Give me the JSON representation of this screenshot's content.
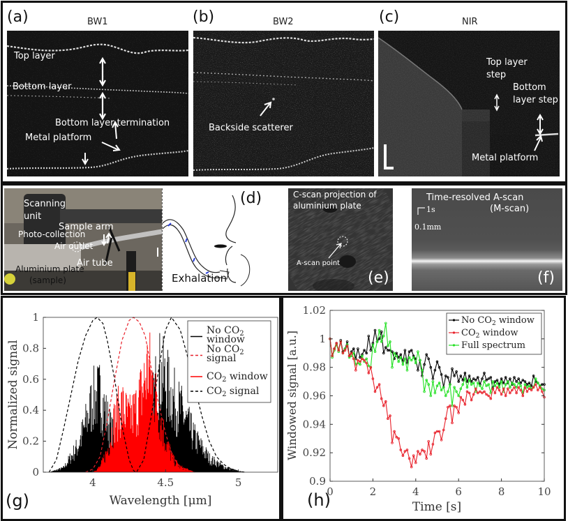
{
  "top_row": {
    "panel_a": {
      "label": "(a)",
      "title": "BW1",
      "annotations": [
        "Top layer",
        "Bottom layer",
        "Bottom layer termination",
        "Metal platform"
      ]
    },
    "panel_b": {
      "label": "(b)",
      "title": "BW2",
      "annotations": [
        "Backside scatterer"
      ]
    },
    "panel_c": {
      "label": "(c)",
      "title": "NIR",
      "annotations": [
        "Top layer",
        "step",
        "Bottom",
        "layer step",
        "Metal platform"
      ]
    }
  },
  "middle_row": {
    "panel_d": {
      "label": "(d)",
      "annotations": [
        "Scanning",
        "unit",
        "Sample arm",
        "Photo-collection",
        "Air outlet",
        "Air tube",
        "Aluminium plate",
        "(sample)",
        "Exhalation"
      ]
    },
    "panel_e": {
      "label": "(e)",
      "annotations": [
        "C-scan projection of",
        "aluminium plate",
        "A-scan point"
      ]
    },
    "panel_f": {
      "label": "(f)",
      "annotations": [
        "Time-resolved A-scan",
        "(M-scan)",
        "1s",
        "0.1mm"
      ]
    }
  },
  "chart_data": [
    {
      "id": "g",
      "panel_label": "(g)",
      "type": "line",
      "xlabel": "Wavelength [μm]",
      "ylabel": "Normalized signal",
      "xlim": [
        3.66,
        5.27
      ],
      "ylim": [
        0,
        1
      ],
      "xticks": [
        "4",
        "4.5",
        "5"
      ],
      "yticks": [
        "0",
        "0.2",
        "0.4",
        "0.6",
        "0.8",
        "1"
      ],
      "grid": false,
      "legend_position": "top-right",
      "series": [
        {
          "name_parts": [
            "No CO",
            "2",
            "window"
          ],
          "style": "solid",
          "color": "#000000",
          "noisy": true,
          "points": [
            [
              3.7,
              0
            ],
            [
              3.8,
              0.04
            ],
            [
              3.9,
              0.25
            ],
            [
              3.95,
              0.45
            ],
            [
              4.0,
              0.68
            ],
            [
              4.05,
              0.74
            ],
            [
              4.1,
              0.5
            ],
            [
              4.15,
              0.3
            ],
            [
              4.2,
              0.1
            ],
            [
              4.3,
              0.05
            ],
            [
              4.4,
              0.55
            ],
            [
              4.45,
              0.95
            ],
            [
              4.5,
              0.85
            ],
            [
              4.55,
              0.7
            ],
            [
              4.6,
              0.6
            ],
            [
              4.7,
              0.32
            ],
            [
              4.8,
              0.13
            ],
            [
              4.9,
              0.05
            ],
            [
              5.0,
              0.01
            ],
            [
              5.05,
              0
            ]
          ]
        },
        {
          "name_parts": [
            "No CO",
            "2",
            "signal"
          ],
          "style": "dashed",
          "color": "#e8202a",
          "noisy": false,
          "points": [
            [
              3.95,
              0
            ],
            [
              4.0,
              0.02
            ],
            [
              4.05,
              0.1
            ],
            [
              4.1,
              0.33
            ],
            [
              4.15,
              0.6
            ],
            [
              4.2,
              0.85
            ],
            [
              4.25,
              0.98
            ],
            [
              4.28,
              1.0
            ],
            [
              4.32,
              0.97
            ],
            [
              4.36,
              0.88
            ],
            [
              4.4,
              0.68
            ],
            [
              4.45,
              0.45
            ],
            [
              4.5,
              0.25
            ],
            [
              4.55,
              0.1
            ],
            [
              4.6,
              0.03
            ],
            [
              4.7,
              0
            ]
          ]
        },
        {
          "name_parts": [
            "CO",
            "2",
            " window"
          ],
          "style": "solid",
          "color": "#ff0000",
          "noisy": true,
          "points": [
            [
              4.0,
              0
            ],
            [
              4.05,
              0.05
            ],
            [
              4.1,
              0.2
            ],
            [
              4.15,
              0.5
            ],
            [
              4.2,
              0.62
            ],
            [
              4.25,
              0.5
            ],
            [
              4.3,
              0.6
            ],
            [
              4.35,
              0.82
            ],
            [
              4.38,
              1.0
            ],
            [
              4.4,
              0.9
            ],
            [
              4.45,
              0.6
            ],
            [
              4.5,
              0.3
            ],
            [
              4.55,
              0.12
            ],
            [
              4.6,
              0.05
            ],
            [
              4.7,
              0
            ]
          ]
        },
        {
          "name_parts": [
            "CO",
            "2",
            " signal"
          ],
          "style": "dashed",
          "color": "#000000",
          "noisy": false,
          "points": [
            [
              3.7,
              0
            ],
            [
              3.75,
              0.08
            ],
            [
              3.8,
              0.28
            ],
            [
              3.85,
              0.5
            ],
            [
              3.9,
              0.72
            ],
            [
              3.95,
              0.88
            ],
            [
              4.0,
              0.98
            ],
            [
              4.03,
              1.0
            ],
            [
              4.07,
              0.96
            ],
            [
              4.1,
              0.85
            ],
            [
              4.15,
              0.6
            ],
            [
              4.2,
              0.3
            ],
            [
              4.25,
              0.08
            ],
            [
              4.28,
              0.01
            ],
            [
              4.3,
              0
            ],
            [
              4.35,
              0.08
            ],
            [
              4.4,
              0.35
            ],
            [
              4.45,
              0.65
            ],
            [
              4.5,
              0.92
            ],
            [
              4.54,
              1.0
            ],
            [
              4.6,
              0.92
            ],
            [
              4.65,
              0.75
            ],
            [
              4.7,
              0.55
            ],
            [
              4.75,
              0.36
            ],
            [
              4.8,
              0.2
            ],
            [
              4.85,
              0.1
            ],
            [
              4.9,
              0.05
            ],
            [
              4.95,
              0.02
            ],
            [
              5.0,
              0.005
            ],
            [
              5.05,
              0
            ]
          ]
        }
      ]
    },
    {
      "id": "h",
      "panel_label": "(h)",
      "type": "line",
      "xlabel": "Time [s]",
      "ylabel": "Windowed signal [a.u.]",
      "xlim": [
        0,
        10
      ],
      "ylim": [
        0.9,
        1.02
      ],
      "xticks": [
        "0",
        "2",
        "4",
        "6",
        "8",
        "10"
      ],
      "yticks": [
        "0.9",
        "0.92",
        "0.94",
        "0.96",
        "0.98",
        "1",
        "1.02"
      ],
      "grid": false,
      "legend_position": "top-right",
      "x_step": 0.1,
      "series": [
        {
          "name_parts": [
            "No CO",
            "2",
            " window"
          ],
          "color": "#000000",
          "values": [
            1.0,
            0.988,
            0.993,
            0.997,
            0.992,
            0.999,
            0.991,
            0.993,
            0.998,
            0.988,
            0.991,
            0.993,
            0.986,
            0.993,
            0.987,
            0.989,
            0.992,
            0.99,
            1.002,
            0.992,
            0.997,
            1.006,
            0.998,
            1.0,
            1.005,
            0.99,
            0.994,
            0.992,
            0.992,
            0.991,
            0.986,
            0.99,
            0.987,
            0.989,
            0.984,
            0.992,
            0.983,
            0.991,
            0.992,
            0.988,
            0.986,
            0.978,
            0.985,
            0.974,
            0.982,
            0.989,
            0.986,
            0.98,
            0.972,
            0.978,
            0.984,
            0.98,
            0.975,
            0.966,
            0.974,
            0.973,
            0.968,
            0.979,
            0.974,
            0.977,
            0.97,
            0.974,
            0.971,
            0.976,
            0.97,
            0.974,
            0.97,
            0.972,
            0.971,
            0.973,
            0.968,
            0.972,
            0.976,
            0.971,
            0.972,
            0.973,
            0.965,
            0.97,
            0.971,
            0.968,
            0.972,
            0.969,
            0.973,
            0.969,
            0.972,
            0.968,
            0.973,
            0.97,
            0.972,
            0.969,
            0.971,
            0.97,
            0.968,
            0.969,
            0.967,
            0.974,
            0.97,
            0.969,
            0.967,
            0.968,
            0.968
          ]
        },
        {
          "name_parts": [
            "CO",
            "2",
            " window"
          ],
          "color": "#e8202a",
          "values": [
            1.0,
            0.988,
            0.993,
            0.997,
            0.992,
            0.998,
            0.99,
            0.992,
            0.995,
            0.988,
            0.99,
            0.986,
            0.978,
            0.985,
            0.984,
            0.986,
            0.985,
            0.983,
            0.976,
            0.98,
            0.972,
            0.963,
            0.966,
            0.968,
            0.958,
            0.953,
            0.956,
            0.944,
            0.946,
            0.927,
            0.935,
            0.931,
            0.93,
            0.922,
            0.918,
            0.921,
            0.922,
            0.916,
            0.91,
            0.918,
            0.913,
            0.921,
            0.919,
            0.922,
            0.921,
            0.916,
            0.928,
            0.919,
            0.926,
            0.934,
            0.935,
            0.935,
            0.929,
            0.936,
            0.944,
            0.952,
            0.953,
            0.941,
            0.953,
            0.952,
            0.948,
            0.959,
            0.957,
            0.954,
            0.963,
            0.962,
            0.957,
            0.961,
            0.965,
            0.962,
            0.963,
            0.962,
            0.963,
            0.961,
            0.96,
            0.958,
            0.965,
            0.962,
            0.966,
            0.964,
            0.961,
            0.965,
            0.96,
            0.965,
            0.962,
            0.964,
            0.966,
            0.962,
            0.966,
            0.964,
            0.96,
            0.966,
            0.963,
            0.965,
            0.964,
            0.966,
            0.968,
            0.964,
            0.966,
            0.963,
            0.959
          ]
        },
        {
          "name_parts": [
            "Full spectrum",
            "",
            ""
          ],
          "color": "#22e022",
          "values": [
            1.0,
            0.987,
            0.992,
            0.996,
            0.991,
            0.998,
            0.99,
            0.993,
            0.996,
            0.987,
            0.988,
            0.99,
            0.982,
            0.983,
            0.982,
            0.988,
            0.984,
            0.986,
            0.981,
            0.98,
            0.996,
            0.991,
            0.998,
            1.006,
            0.998,
            1.002,
            1.011,
            0.995,
            0.998,
            0.98,
            0.99,
            0.988,
            0.984,
            0.987,
            0.982,
            0.986,
            0.978,
            0.987,
            0.985,
            0.987,
            0.983,
            0.991,
            0.985,
            0.978,
            0.963,
            0.971,
            0.968,
            0.96,
            0.97,
            0.962,
            0.967,
            0.969,
            0.964,
            0.966,
            0.96,
            0.963,
            0.968,
            0.953,
            0.966,
            0.963,
            0.96,
            0.965,
            0.968,
            0.972,
            0.966,
            0.971,
            0.968,
            0.969,
            0.963,
            0.969,
            0.967,
            0.965,
            0.97,
            0.967,
            0.968,
            0.962,
            0.97,
            0.967,
            0.969,
            0.966,
            0.97,
            0.963,
            0.968,
            0.97,
            0.966,
            0.969,
            0.968,
            0.966,
            0.969,
            0.967,
            0.962,
            0.968,
            0.966,
            0.967,
            0.965,
            0.966,
            0.972,
            0.969,
            0.967,
            0.965,
            0.964
          ]
        }
      ]
    }
  ]
}
